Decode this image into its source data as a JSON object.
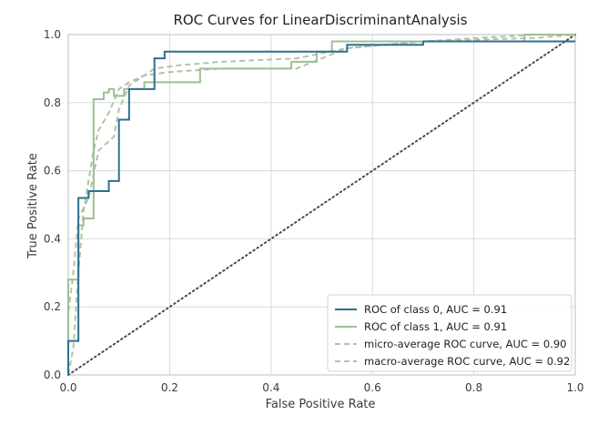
{
  "chart_data": {
    "type": "line",
    "title": "ROC Curves for LinearDiscriminantAnalysis",
    "xlabel": "False Positive Rate",
    "ylabel": "True Positive Rate",
    "xlim": [
      0.0,
      1.0
    ],
    "ylim": [
      0.0,
      1.0
    ],
    "x_ticks": [
      "0.0",
      "0.2",
      "0.4",
      "0.6",
      "0.8",
      "1.0"
    ],
    "y_ticks": [
      "0.0",
      "0.2",
      "0.4",
      "0.6",
      "0.8",
      "1.0"
    ],
    "grid": true,
    "legend_position": "lower-right",
    "colors": {
      "class0": "#2e6f8e",
      "class1": "#9dbf95",
      "micro": "#a9c79f",
      "macro": "#b8bfb0",
      "diagonal": "#4a4a4a",
      "frame": "#b9bfc6",
      "grid": "#d6d9dc"
    },
    "series": [
      {
        "name": "ROC of class 0, AUC = 0.91",
        "style": "solid",
        "x": [
          0.0,
          0.0,
          0.02,
          0.02,
          0.04,
          0.04,
          0.08,
          0.08,
          0.1,
          0.1,
          0.12,
          0.12,
          0.17,
          0.17,
          0.19,
          0.19,
          0.55,
          0.55,
          0.7,
          0.7,
          1.0
        ],
        "y": [
          0.0,
          0.1,
          0.1,
          0.52,
          0.52,
          0.54,
          0.54,
          0.57,
          0.57,
          0.75,
          0.75,
          0.84,
          0.84,
          0.93,
          0.93,
          0.95,
          0.95,
          0.97,
          0.97,
          0.98,
          0.98
        ]
      },
      {
        "name": "ROC of class 1, AUC = 0.91",
        "style": "solid",
        "x": [
          0.0,
          0.0,
          0.02,
          0.02,
          0.03,
          0.03,
          0.05,
          0.05,
          0.07,
          0.07,
          0.08,
          0.08,
          0.09,
          0.09,
          0.11,
          0.11,
          0.15,
          0.15,
          0.26,
          0.26,
          0.44,
          0.44,
          0.49,
          0.49,
          0.52,
          0.52,
          0.9,
          0.9,
          1.0
        ],
        "y": [
          0.0,
          0.28,
          0.28,
          0.44,
          0.44,
          0.46,
          0.46,
          0.81,
          0.81,
          0.83,
          0.83,
          0.84,
          0.84,
          0.82,
          0.82,
          0.84,
          0.84,
          0.86,
          0.86,
          0.9,
          0.9,
          0.92,
          0.92,
          0.95,
          0.95,
          0.98,
          0.98,
          1.0,
          1.0
        ]
      },
      {
        "name": "micro-average ROC curve, AUC = 0.90",
        "style": "dashed",
        "x": [
          0.0,
          0.01,
          0.02,
          0.03,
          0.05,
          0.06,
          0.08,
          0.1,
          0.12,
          0.15,
          0.2,
          0.3,
          0.45,
          0.5,
          0.55,
          0.7,
          0.92,
          1.0
        ],
        "y": [
          0.0,
          0.08,
          0.3,
          0.48,
          0.66,
          0.72,
          0.77,
          0.84,
          0.86,
          0.88,
          0.89,
          0.9,
          0.9,
          0.93,
          0.96,
          0.98,
          1.0,
          1.0
        ]
      },
      {
        "name": "macro-average ROC curve, AUC = 0.92",
        "style": "dashed",
        "x": [
          0.0,
          0.0,
          0.01,
          0.02,
          0.04,
          0.06,
          0.09,
          0.1,
          0.12,
          0.17,
          0.22,
          0.3,
          0.45,
          0.55,
          0.7,
          0.92,
          1.0
        ],
        "y": [
          0.0,
          0.18,
          0.3,
          0.46,
          0.52,
          0.66,
          0.7,
          0.78,
          0.85,
          0.9,
          0.91,
          0.92,
          0.93,
          0.96,
          0.98,
          0.99,
          1.0
        ]
      }
    ],
    "diagonal": {
      "x": [
        0.0,
        1.0
      ],
      "y": [
        0.0,
        1.0
      ],
      "style": "dotted"
    }
  }
}
